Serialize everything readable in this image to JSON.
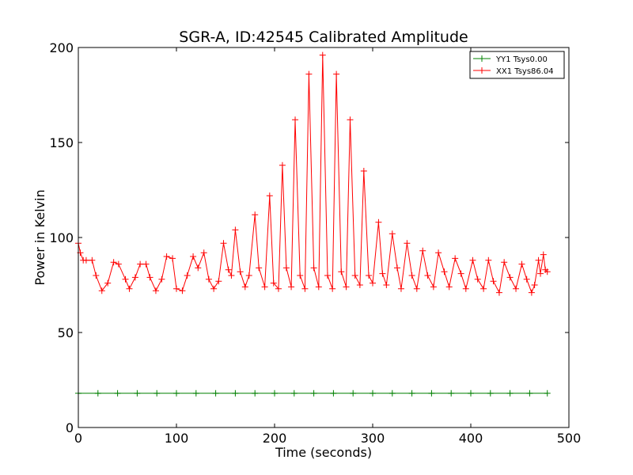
{
  "chart_data": {
    "type": "line",
    "title": "SGR-A, ID:42545 Calibrated Amplitude",
    "xlabel": "Time (seconds)",
    "ylabel": "Power in Kelvin",
    "xlim": [
      0,
      500
    ],
    "ylim": [
      0,
      200
    ],
    "xticks": [
      0,
      100,
      200,
      300,
      400,
      500
    ],
    "yticks": [
      0,
      50,
      100,
      150,
      200
    ],
    "xtick_labels": [
      "0",
      "100",
      "200",
      "300",
      "400",
      "500"
    ],
    "ytick_labels": [
      "0",
      "50",
      "100",
      "150",
      "200"
    ],
    "grid": false,
    "legend_position": "top-right",
    "series": [
      {
        "name": "YY1 Tsys0.00",
        "color": "#008000",
        "marker": "+",
        "x": [
          0,
          20,
          40,
          60,
          80,
          100,
          120,
          140,
          160,
          180,
          200,
          220,
          240,
          260,
          280,
          300,
          320,
          340,
          360,
          380,
          400,
          420,
          440,
          460,
          478
        ],
        "y": [
          18,
          18,
          18,
          18,
          18,
          18,
          18,
          18,
          18,
          18,
          18,
          18,
          18,
          18,
          18,
          18,
          18,
          18,
          18,
          18,
          18,
          18,
          18,
          18,
          18
        ]
      },
      {
        "name": "XX1 Tsys86.04",
        "color": "#ff0000",
        "marker": "+",
        "x": [
          0,
          2,
          5,
          8,
          14,
          18,
          24,
          30,
          36,
          41,
          48,
          52,
          58,
          63,
          69,
          73,
          79,
          85,
          90,
          96,
          100,
          106,
          111,
          117,
          122,
          128,
          133,
          138,
          143,
          148,
          153,
          156,
          160,
          165,
          170,
          174,
          180,
          184,
          190,
          195,
          199,
          204,
          208,
          212,
          217,
          221,
          226,
          231,
          235,
          240,
          245,
          249,
          254,
          259,
          263,
          268,
          273,
          277,
          282,
          287,
          291,
          296,
          300,
          306,
          310,
          314,
          320,
          325,
          329,
          335,
          340,
          345,
          351,
          356,
          362,
          367,
          373,
          378,
          384,
          390,
          395,
          402,
          407,
          413,
          418,
          423,
          429,
          434,
          440,
          446,
          452,
          457,
          462,
          465,
          469,
          471,
          474,
          476,
          478
        ],
        "y": [
          97,
          92,
          88,
          88,
          88,
          80,
          72,
          76,
          87,
          86,
          78,
          73,
          79,
          86,
          86,
          79,
          72,
          78,
          90,
          89,
          73,
          72,
          80,
          90,
          84,
          92,
          78,
          73,
          77,
          97,
          83,
          80,
          104,
          82,
          74,
          80,
          112,
          84,
          74,
          122,
          76,
          73,
          138,
          84,
          74,
          162,
          80,
          73,
          186,
          84,
          74,
          196,
          80,
          73,
          186,
          82,
          74,
          162,
          80,
          75,
          135,
          80,
          76,
          108,
          81,
          75,
          102,
          84,
          73,
          97,
          80,
          73,
          93,
          80,
          74,
          92,
          82,
          74,
          89,
          81,
          73,
          88,
          78,
          73,
          88,
          77,
          71,
          87,
          79,
          73,
          86,
          78,
          71,
          75,
          88,
          81,
          91,
          83,
          82
        ]
      }
    ]
  }
}
